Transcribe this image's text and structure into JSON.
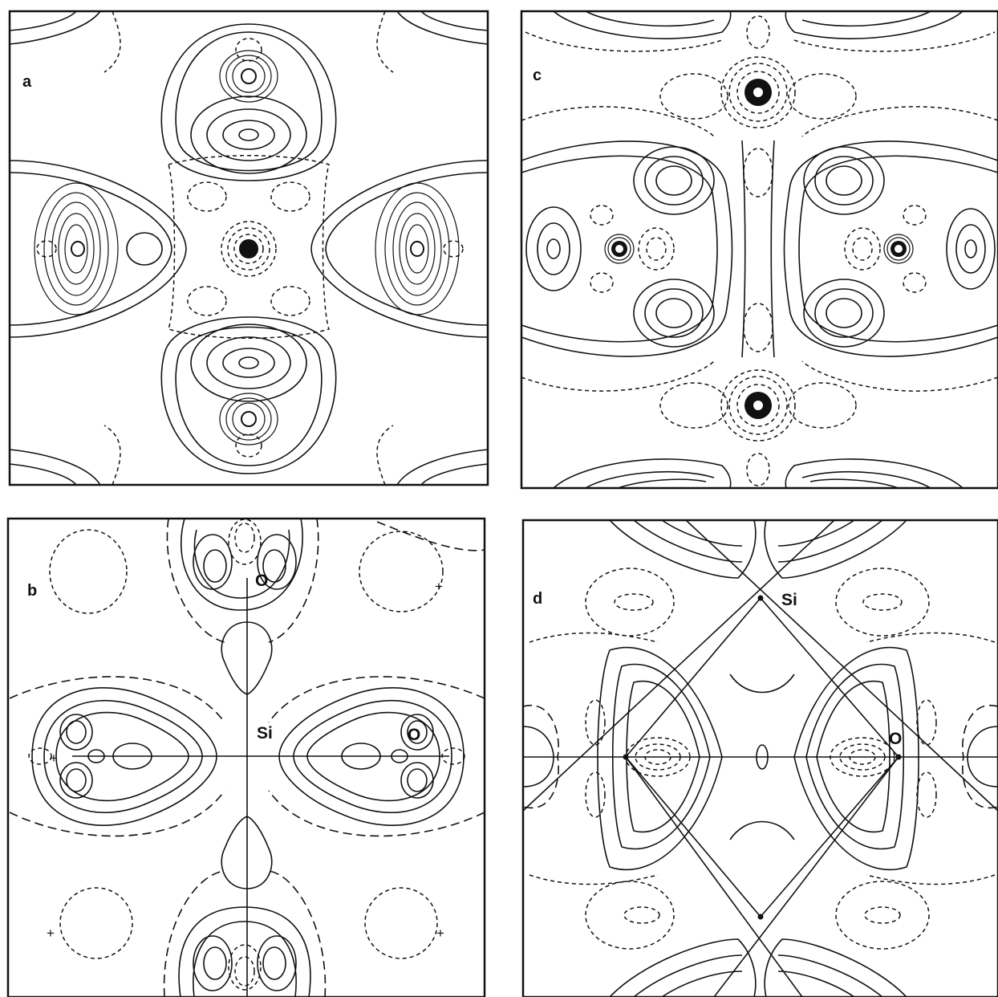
{
  "panels": [
    {
      "id": "a",
      "label": "a",
      "atom_labels": [],
      "markers": []
    },
    {
      "id": "b",
      "label": "b",
      "atom_labels": [
        "O",
        "Si",
        "O"
      ],
      "markers": [
        "+",
        "+",
        "+",
        "+"
      ]
    },
    {
      "id": "c",
      "label": "c",
      "atom_labels": [],
      "markers": []
    },
    {
      "id": "d",
      "label": "d",
      "atom_labels": [
        "Si",
        "O"
      ],
      "markers": []
    }
  ],
  "line_styles": {
    "positive": "solid",
    "negative": "dashed"
  },
  "colors": {
    "ink": "#111111",
    "background": "#ffffff"
  }
}
